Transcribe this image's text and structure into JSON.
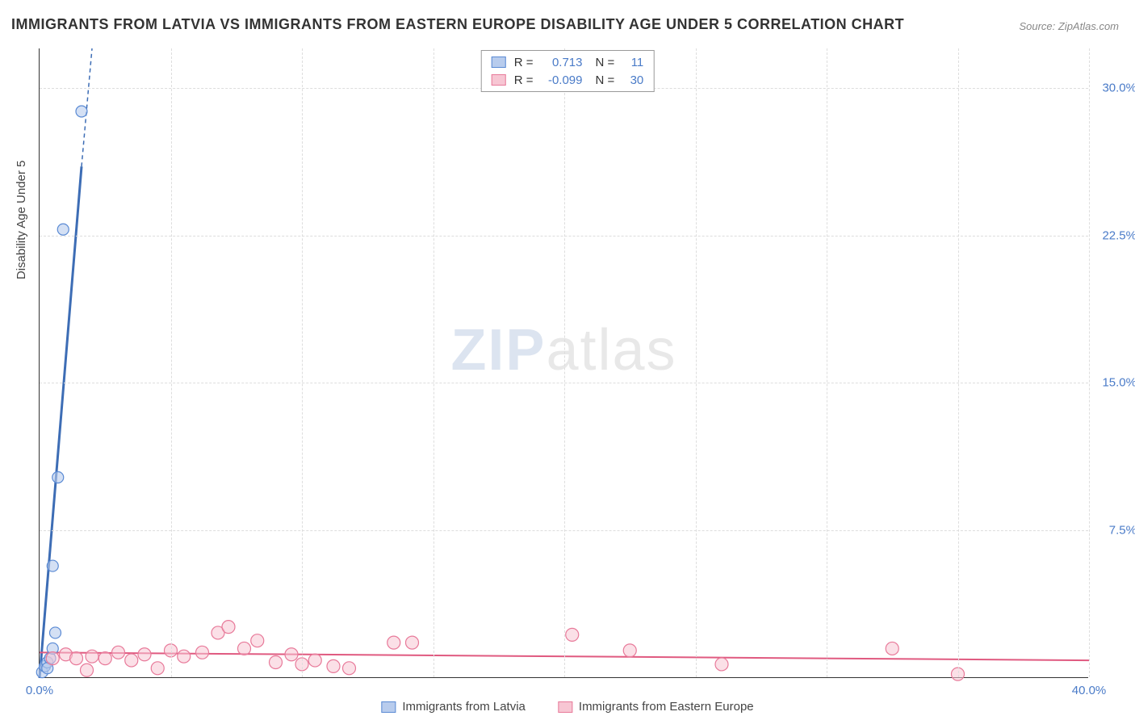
{
  "title": "IMMIGRANTS FROM LATVIA VS IMMIGRANTS FROM EASTERN EUROPE DISABILITY AGE UNDER 5 CORRELATION CHART",
  "source": "Source: ZipAtlas.com",
  "watermark_zip": "ZIP",
  "watermark_atlas": "atlas",
  "y_axis_title": "Disability Age Under 5",
  "chart": {
    "type": "scatter",
    "xlim": [
      0,
      40
    ],
    "ylim": [
      0,
      32
    ],
    "x_ticks": [
      0,
      40
    ],
    "x_tick_labels": [
      "0.0%",
      "40.0%"
    ],
    "y_ticks": [
      7.5,
      15.0,
      22.5,
      30.0
    ],
    "y_tick_labels": [
      "7.5%",
      "15.0%",
      "22.5%",
      "30.0%"
    ],
    "grid_x_positions": [
      5,
      10,
      15,
      20,
      25,
      30,
      35,
      40
    ],
    "grid_y_positions": [
      7.5,
      15.0,
      22.5,
      30.0
    ],
    "background_color": "#ffffff",
    "grid_color": "#dddddd",
    "axis_color": "#333333",
    "tick_label_color": "#4a7bc8",
    "series": [
      {
        "name": "Immigrants from Latvia",
        "color_fill": "#b8cced",
        "color_stroke": "#5a8ad4",
        "marker_radius": 7,
        "marker_opacity": 0.6,
        "trend": {
          "x1": 0,
          "y1": 0,
          "x2": 2.0,
          "y2": 32,
          "dash_beyond_x": 1.6,
          "dash_beyond_y": 26
        },
        "trend_color": "#3d6db5",
        "trend_width": 3,
        "R": "0.713",
        "N": "11",
        "points": [
          [
            0.1,
            0.3
          ],
          [
            0.2,
            0.6
          ],
          [
            0.3,
            0.8
          ],
          [
            0.4,
            1.0
          ],
          [
            0.5,
            1.5
          ],
          [
            0.6,
            2.3
          ],
          [
            0.5,
            5.7
          ],
          [
            0.7,
            10.2
          ],
          [
            0.9,
            22.8
          ],
          [
            1.6,
            28.8
          ],
          [
            0.3,
            0.5
          ]
        ]
      },
      {
        "name": "Immigrants from Eastern Europe",
        "color_fill": "#f7c6d3",
        "color_stroke": "#e87a9a",
        "marker_radius": 8,
        "marker_opacity": 0.55,
        "trend": {
          "x1": 0,
          "y1": 1.3,
          "x2": 40,
          "y2": 0.9
        },
        "trend_color": "#e05a80",
        "trend_width": 2,
        "R": "-0.099",
        "N": "30",
        "points": [
          [
            0.5,
            1.0
          ],
          [
            1.0,
            1.2
          ],
          [
            1.4,
            1.0
          ],
          [
            1.8,
            0.4
          ],
          [
            2.0,
            1.1
          ],
          [
            2.5,
            1.0
          ],
          [
            3.0,
            1.3
          ],
          [
            3.5,
            0.9
          ],
          [
            4.0,
            1.2
          ],
          [
            4.5,
            0.5
          ],
          [
            5.0,
            1.4
          ],
          [
            5.5,
            1.1
          ],
          [
            6.2,
            1.3
          ],
          [
            6.8,
            2.3
          ],
          [
            7.2,
            2.6
          ],
          [
            7.8,
            1.5
          ],
          [
            8.3,
            1.9
          ],
          [
            9.0,
            0.8
          ],
          [
            9.6,
            1.2
          ],
          [
            10.0,
            0.7
          ],
          [
            10.5,
            0.9
          ],
          [
            11.2,
            0.6
          ],
          [
            11.8,
            0.5
          ],
          [
            13.5,
            1.8
          ],
          [
            14.2,
            1.8
          ],
          [
            20.3,
            2.2
          ],
          [
            22.5,
            1.4
          ],
          [
            26.0,
            0.7
          ],
          [
            32.5,
            1.5
          ],
          [
            35.0,
            0.2
          ]
        ]
      }
    ]
  },
  "legend_top": {
    "rows": [
      {
        "swatch_fill": "#b8cced",
        "swatch_stroke": "#5a8ad4",
        "R_label": "R =",
        "R_val": "0.713",
        "N_label": "N =",
        "N_val": "11"
      },
      {
        "swatch_fill": "#f7c6d3",
        "swatch_stroke": "#e87a9a",
        "R_label": "R =",
        "R_val": "-0.099",
        "N_label": "N =",
        "N_val": "30"
      }
    ]
  },
  "legend_bottom": {
    "items": [
      {
        "swatch_fill": "#b8cced",
        "swatch_stroke": "#5a8ad4",
        "label": "Immigrants from Latvia"
      },
      {
        "swatch_fill": "#f7c6d3",
        "swatch_stroke": "#e87a9a",
        "label": "Immigrants from Eastern Europe"
      }
    ]
  }
}
